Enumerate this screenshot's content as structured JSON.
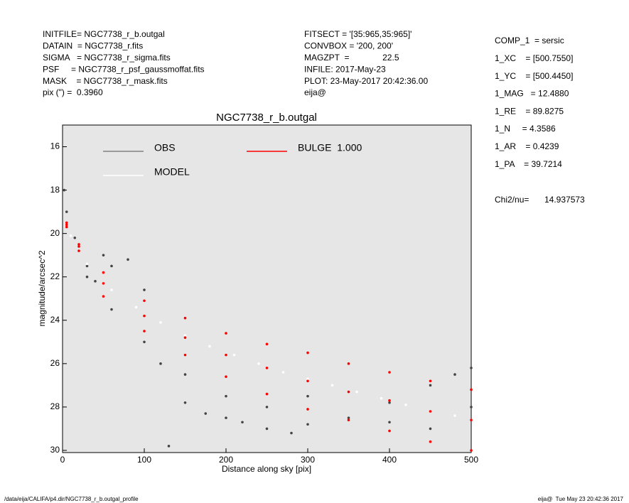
{
  "info_left": [
    "INITFILE= NGC7738_r_b.outgal",
    "DATAIN  = NGC7738_r.fits",
    "SIGMA   = NGC7738_r_sigma.fits",
    "PSF     = NGC7738_r_psf_gaussmoffat.fits",
    "MASK    = NGC7738_r_mask.fits",
    "pix (\") =  0.3960"
  ],
  "info_middle": [
    "FITSECT = '[35:965,35:965]'",
    "CONVBOX = '200, 200'",
    "MAGZPT  =              22.5",
    "INFILE: 2017-May-23",
    "PLOT: 23-May-2017 20:42:36.00",
    "eija@"
  ],
  "info_right": [
    "COMP_1  = sersic",
    "1_XC    = [500.7550]",
    "1_YC    = [500.4450]",
    "1_MAG   = 12.4880",
    "1_RE    = 89.8275",
    "1_N     = 4.3586",
    "1_AR    = 0.4239",
    "1_PA    = 39.7214"
  ],
  "chi_label": "Chi2/nu=",
  "chi_value": "14.937573",
  "footer_left": "/data/eija/CALIFA/p4.dir/NGC7738_r_b.outgal_profile",
  "footer_right": "eija@  Tue May 23 20:42:36 2017",
  "chart_data": {
    "type": "scatter",
    "title": "NGC7738_r_b.outgal",
    "xlabel": "Distance along sky [pix]",
    "ylabel": "magnitude/arcsec^2",
    "xlim": [
      0,
      500
    ],
    "ylim": [
      30.1,
      15
    ],
    "xticks": [
      0,
      100,
      200,
      300,
      400,
      500
    ],
    "yticks": [
      16,
      18,
      20,
      22,
      24,
      26,
      28,
      30
    ],
    "grid": false,
    "series": [
      {
        "name": "OBS",
        "color": "#444444",
        "legend_color": "#808080",
        "x": [
          2,
          5,
          15,
          30,
          40,
          50,
          60,
          80,
          100,
          30,
          60,
          100,
          150,
          150,
          200,
          200,
          250,
          250,
          300,
          300,
          350,
          400,
          450,
          450,
          480,
          500,
          500,
          175,
          120,
          130,
          220,
          280,
          400
        ],
        "y": [
          18.0,
          19.0,
          20.2,
          21.5,
          22.2,
          21.0,
          21.5,
          21.2,
          22.6,
          22.0,
          23.5,
          25.0,
          26.5,
          27.8,
          27.5,
          28.5,
          28.0,
          29.0,
          28.8,
          27.5,
          28.5,
          28.7,
          27.0,
          29.0,
          26.5,
          26.2,
          28.0,
          28.3,
          26.0,
          29.8,
          28.7,
          29.2,
          27.8
        ]
      },
      {
        "name": "MODEL",
        "color": "#ffffff",
        "legend_color": "#ffffff",
        "x": [
          10,
          30,
          60,
          90,
          120,
          150,
          180,
          210,
          240,
          270,
          300,
          330,
          360,
          390,
          420,
          450,
          480,
          500
        ],
        "y": [
          20.1,
          21.4,
          22.6,
          23.4,
          24.1,
          24.7,
          25.2,
          25.6,
          26.0,
          26.4,
          26.7,
          27.0,
          27.3,
          27.6,
          27.9,
          28.2,
          28.4,
          28.6
        ]
      },
      {
        "name": "BULGE  1.000",
        "color": "#ff0000",
        "legend_color": "#ff0000",
        "x": [
          5,
          20,
          50,
          100,
          150,
          200,
          250,
          300,
          350,
          400,
          450,
          500,
          5,
          20,
          50,
          100,
          150,
          200,
          250,
          300,
          350,
          400,
          450,
          500,
          5,
          20,
          50,
          100,
          150,
          200,
          250,
          300,
          350,
          400,
          450,
          500
        ],
        "y": [
          19.5,
          20.5,
          21.8,
          23.1,
          23.9,
          24.6,
          25.1,
          25.5,
          26.0,
          26.4,
          26.8,
          27.2,
          19.7,
          20.8,
          22.9,
          24.5,
          25.6,
          26.6,
          27.4,
          28.1,
          28.6,
          29.1,
          29.6,
          30.0,
          19.6,
          20.6,
          22.3,
          23.8,
          24.8,
          25.6,
          26.2,
          26.8,
          27.3,
          27.7,
          28.2,
          28.6
        ]
      }
    ]
  }
}
